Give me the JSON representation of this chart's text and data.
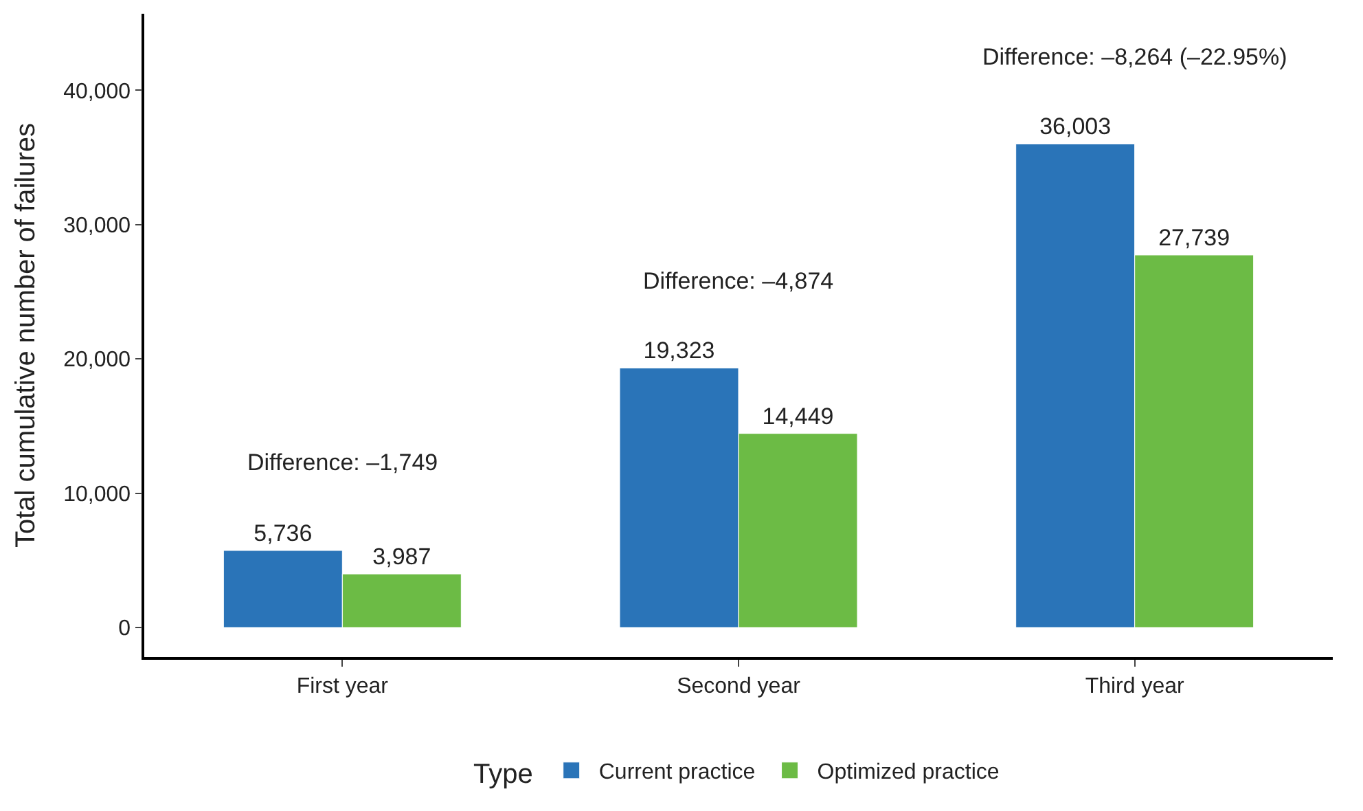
{
  "chart_data": {
    "type": "bar",
    "ylabel": "Total cumulative number of failures",
    "legend_title": "Type",
    "categories": [
      "First year",
      "Second year",
      "Third year"
    ],
    "series": [
      {
        "name": "Current practice",
        "color": "#2a74b8",
        "values": [
          5736,
          19323,
          36003
        ],
        "value_labels": [
          "5,736",
          "19,323",
          "36,003"
        ]
      },
      {
        "name": "Optimized practice",
        "color": "#6cbb45",
        "values": [
          3987,
          14449,
          27739
        ],
        "value_labels": [
          "3,987",
          "14,449",
          "27,739"
        ]
      }
    ],
    "ylim": [
      -2200,
      45700
    ],
    "yticks": [
      0,
      {
        "value": 10000,
        "label": "10,000"
      },
      {
        "value": 20000,
        "label": "20,000"
      },
      {
        "value": 30000,
        "label": "30,000"
      },
      {
        "value": 40000,
        "label": "40,000"
      }
    ],
    "grid": false,
    "legend": "bottom",
    "annotations": [
      "Difference: –1,749",
      "Difference: –4,874",
      "Difference: –8,264 (–22.95%)"
    ]
  }
}
